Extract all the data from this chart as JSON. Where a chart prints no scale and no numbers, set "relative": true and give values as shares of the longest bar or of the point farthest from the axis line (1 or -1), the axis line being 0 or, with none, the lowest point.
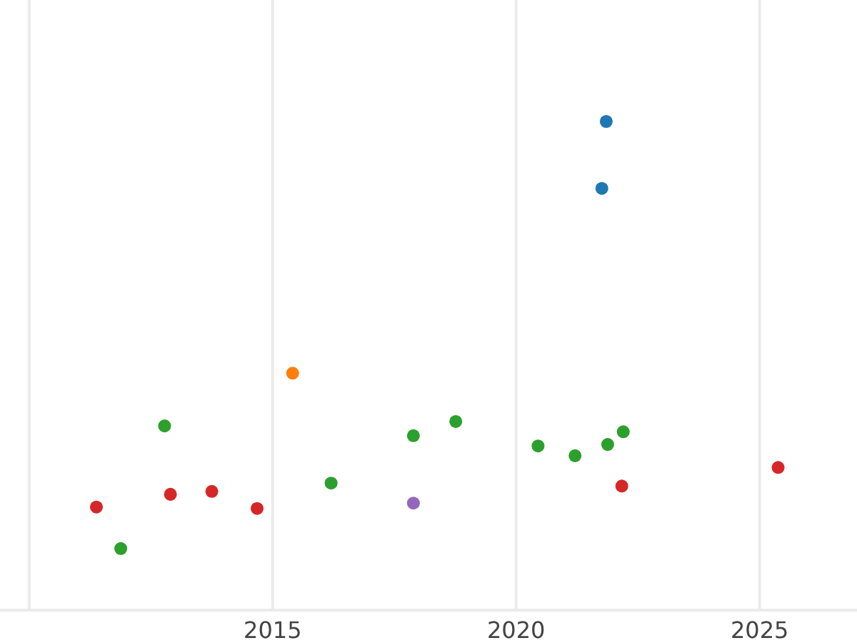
{
  "chart_data": {
    "type": "scatter",
    "relative": true,
    "grid": "x",
    "marker": "circle",
    "xlim": [
      2009.4,
      2027.0
    ],
    "xticks": [
      {
        "value": 2010,
        "label": null
      },
      2015,
      2020,
      2025
    ],
    "tick_labels": "x",
    "series": [
      {
        "color": "#1f77b4",
        "x": [
          2021.85,
          2021.76
        ],
        "values": [
          1.0,
          0.863
        ]
      },
      {
        "color": "#ff7f0e",
        "x": [
          2015.41
        ],
        "values": [
          0.485
        ]
      },
      {
        "color": "#9467bd",
        "x": [
          2017.89
        ],
        "values": [
          0.219
        ]
      },
      {
        "color": "#2ca02c",
        "x": [
          2011.88,
          2012.78,
          2016.2,
          2017.89,
          2018.76,
          2020.45,
          2021.21,
          2021.88,
          2022.2
        ],
        "values": [
          0.126,
          0.377,
          0.26,
          0.357,
          0.386,
          0.336,
          0.316,
          0.339,
          0.365
        ]
      },
      {
        "color": "#d62728",
        "x": [
          2011.38,
          2012.9,
          2013.75,
          2014.68,
          2022.17,
          2025.38
        ],
        "values": [
          0.211,
          0.237,
          0.243,
          0.208,
          0.254,
          0.292
        ]
      }
    ]
  }
}
